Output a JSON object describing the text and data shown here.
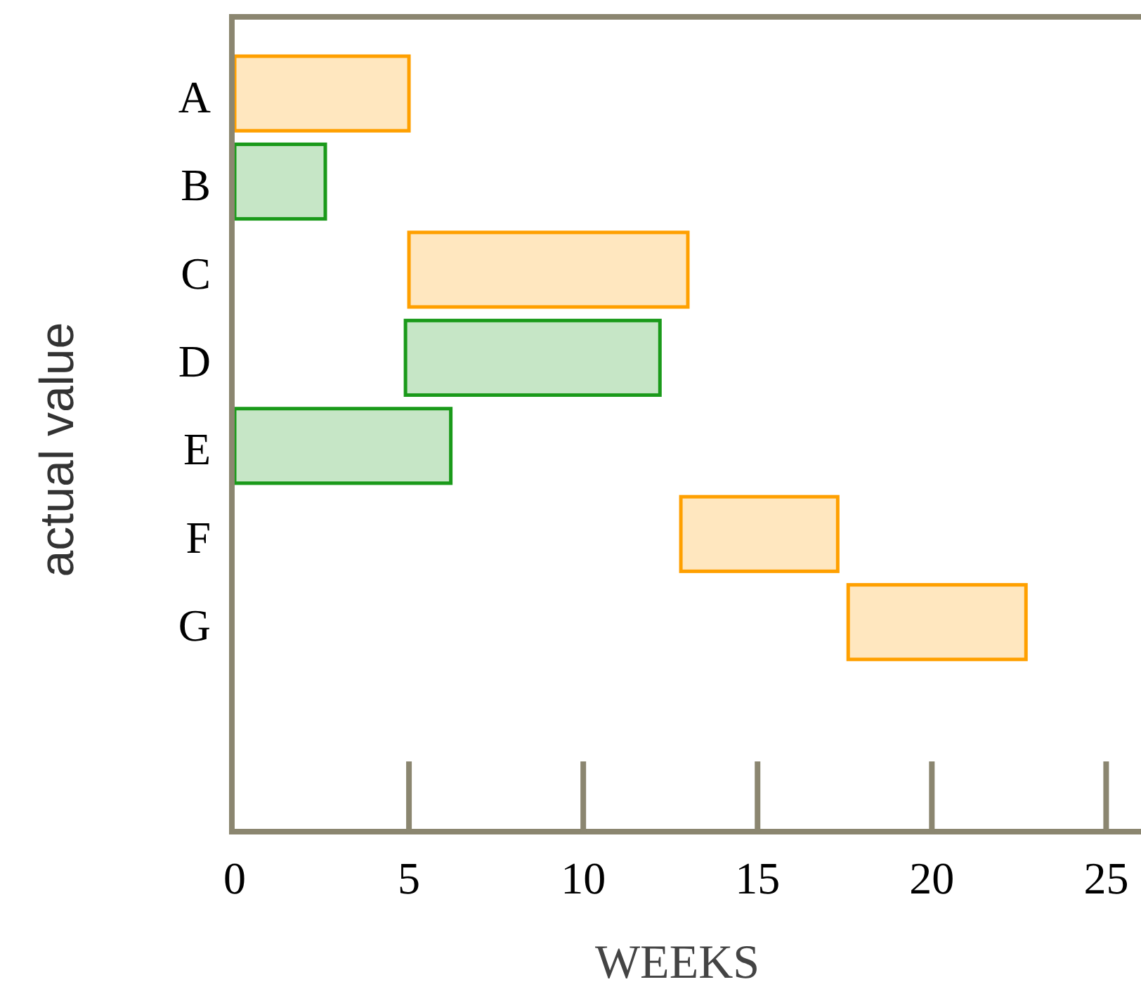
{
  "chart_data": {
    "type": "bar",
    "orientation": "horizontal",
    "categories": [
      "A",
      "B",
      "C",
      "D",
      "E",
      "F",
      "G"
    ],
    "base": [
      0,
      0,
      5,
      4.9,
      0,
      12.8,
      17.6
    ],
    "values": [
      5,
      2.6,
      8,
      7.3,
      6.2,
      4.5,
      5.1
    ],
    "colors": [
      "#ffa000",
      "#1a9a1a",
      "#ffa000",
      "#1a9a1a",
      "#1a9a1a",
      "#ffa000",
      "#ffa000"
    ],
    "xlim": [
      0,
      26
    ],
    "xticks": [
      0,
      5,
      10,
      15,
      20,
      25
    ],
    "xlabel": "WEEKS",
    "ylabel": "actual value",
    "grid": false
  }
}
